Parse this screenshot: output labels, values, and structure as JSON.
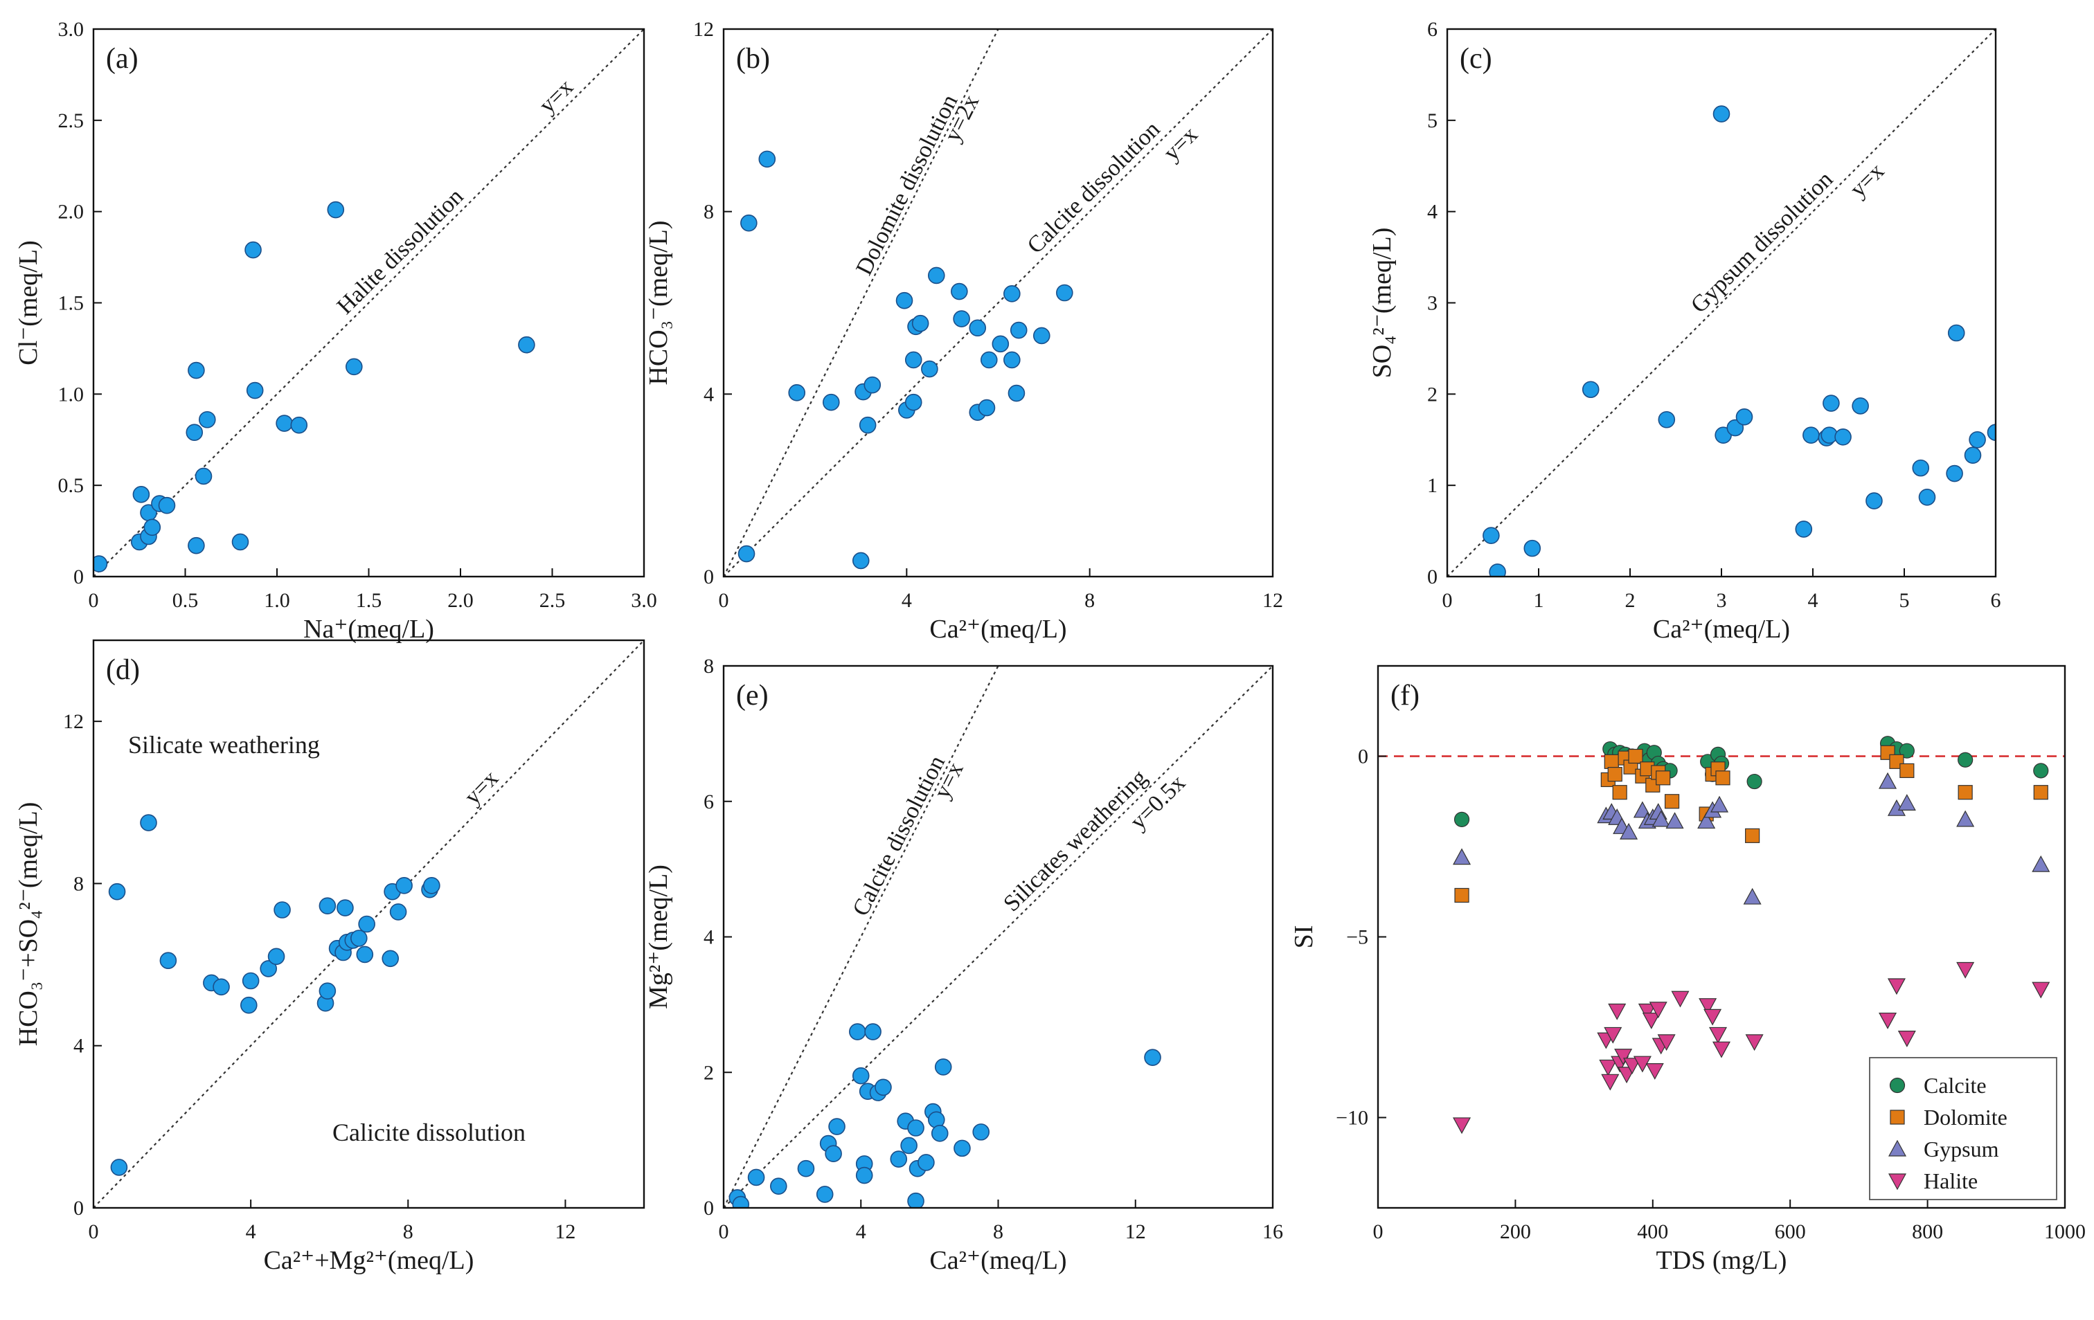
{
  "colors": {
    "point": "#1e9be6",
    "pointStroke": "#1a4f8a",
    "axis": "#111111",
    "ref": "#333333",
    "zero": "#d62728",
    "calcite": "#1e8c5a",
    "dolomite": "#e07a14",
    "gypsum": "#7b7fc4",
    "halite": "#d63d8a"
  },
  "chart_data": [
    {
      "id": "a",
      "type": "scatter",
      "panel_label": "(a)",
      "xlabel": "Na⁺(meq/L)",
      "ylabel": "Cl⁻(meq/L)",
      "xlim": [
        0,
        3.0
      ],
      "ylim": [
        0,
        3.0
      ],
      "xticks": [
        "0",
        "0.5",
        "1.0",
        "1.5",
        "2.0",
        "2.5",
        "3.0"
      ],
      "yticks": [
        "0",
        "0.5",
        "1.0",
        "1.5",
        "2.0",
        "2.5",
        "3.0"
      ],
      "xtick_values": [
        0,
        0.5,
        1.0,
        1.5,
        2.0,
        2.5,
        3.0
      ],
      "ytick_values": [
        0,
        0.5,
        1.0,
        1.5,
        2.0,
        2.5,
        3.0
      ],
      "ref_lines": [
        {
          "slope": 1,
          "label": "y=x",
          "desc": "Halite dissolution"
        }
      ],
      "points": [
        [
          0.03,
          0.07
        ],
        [
          0.25,
          0.19
        ],
        [
          0.26,
          0.45
        ],
        [
          0.3,
          0.35
        ],
        [
          0.3,
          0.22
        ],
        [
          0.32,
          0.27
        ],
        [
          0.36,
          0.4
        ],
        [
          0.4,
          0.39
        ],
        [
          0.55,
          0.79
        ],
        [
          0.56,
          1.13
        ],
        [
          0.56,
          0.17
        ],
        [
          0.6,
          0.55
        ],
        [
          0.62,
          0.86
        ],
        [
          0.8,
          0.19
        ],
        [
          0.87,
          1.79
        ],
        [
          0.88,
          1.02
        ],
        [
          1.04,
          0.84
        ],
        [
          1.12,
          0.83
        ],
        [
          1.32,
          2.01
        ],
        [
          1.42,
          1.15
        ],
        [
          2.36,
          1.27
        ]
      ]
    },
    {
      "id": "b",
      "type": "scatter",
      "panel_label": "(b)",
      "xlabel": "Ca²⁺(meq/L)",
      "ylabel": "HCO₃⁻(meq/L)",
      "xlim": [
        0,
        12
      ],
      "ylim": [
        0,
        12
      ],
      "xticks": [
        "0",
        "4",
        "8",
        "12"
      ],
      "yticks": [
        "0",
        "4",
        "8",
        "12"
      ],
      "xtick_values": [
        0,
        4,
        8,
        12
      ],
      "ytick_values": [
        0,
        4,
        8,
        12
      ],
      "ref_lines": [
        {
          "slope": 2,
          "label": "y=2x",
          "desc": "Dolomite dissolution"
        },
        {
          "slope": 1,
          "label": "y=x",
          "desc": "Calcite dissolution"
        }
      ],
      "points": [
        [
          0.5,
          0.5
        ],
        [
          0.55,
          7.75
        ],
        [
          0.95,
          9.15
        ],
        [
          1.6,
          4.03
        ],
        [
          2.35,
          3.82
        ],
        [
          3.0,
          0.35
        ],
        [
          3.05,
          4.05
        ],
        [
          3.15,
          3.32
        ],
        [
          3.25,
          4.2
        ],
        [
          3.95,
          6.05
        ],
        [
          4.0,
          3.65
        ],
        [
          4.15,
          3.82
        ],
        [
          4.15,
          4.75
        ],
        [
          4.2,
          5.48
        ],
        [
          4.3,
          5.55
        ],
        [
          4.5,
          4.55
        ],
        [
          4.65,
          6.6
        ],
        [
          5.15,
          6.25
        ],
        [
          5.2,
          5.65
        ],
        [
          5.55,
          5.45
        ],
        [
          5.55,
          3.6
        ],
        [
          5.75,
          3.7
        ],
        [
          5.8,
          4.75
        ],
        [
          6.05,
          5.1
        ],
        [
          6.3,
          6.2
        ],
        [
          6.3,
          4.75
        ],
        [
          6.4,
          4.02
        ],
        [
          6.45,
          5.4
        ],
        [
          6.95,
          5.28
        ],
        [
          7.45,
          6.22
        ]
      ]
    },
    {
      "id": "c",
      "type": "scatter",
      "panel_label": "(c)",
      "xlabel": "Ca²⁺(meq/L)",
      "ylabel": "SO₄²⁻(meq/L)",
      "xlim": [
        0,
        6
      ],
      "ylim": [
        0,
        6
      ],
      "xticks": [
        "0",
        "1",
        "2",
        "3",
        "4",
        "5",
        "6"
      ],
      "yticks": [
        "0",
        "1",
        "2",
        "3",
        "4",
        "5",
        "6"
      ],
      "xtick_values": [
        0,
        1,
        2,
        3,
        4,
        5,
        6
      ],
      "ytick_values": [
        0,
        1,
        2,
        3,
        4,
        5,
        6
      ],
      "ref_lines": [
        {
          "slope": 1,
          "label": "y=x",
          "desc": "Gypsum dissolution"
        }
      ],
      "points": [
        [
          0.48,
          0.45
        ],
        [
          0.55,
          0.05
        ],
        [
          0.93,
          0.31
        ],
        [
          1.57,
          2.05
        ],
        [
          2.4,
          1.72
        ],
        [
          3.0,
          5.07
        ],
        [
          3.02,
          1.55
        ],
        [
          3.15,
          1.63
        ],
        [
          3.25,
          1.75
        ],
        [
          3.9,
          0.52
        ],
        [
          3.98,
          1.55
        ],
        [
          4.15,
          1.52
        ],
        [
          4.18,
          1.55
        ],
        [
          4.2,
          1.9
        ],
        [
          4.33,
          1.53
        ],
        [
          4.52,
          1.87
        ],
        [
          4.67,
          0.83
        ],
        [
          5.18,
          1.19
        ],
        [
          5.25,
          0.87
        ],
        [
          5.55,
          1.13
        ],
        [
          5.57,
          2.67
        ],
        [
          5.75,
          1.33
        ],
        [
          5.8,
          1.5
        ],
        [
          6.0,
          1.58
        ]
      ]
    },
    {
      "id": "d",
      "type": "scatter",
      "panel_label": "(d)",
      "xlabel": "Ca²⁺+Mg²⁺(meq/L)",
      "ylabel": "HCO₃⁻+SO₄²⁻(meq/L)",
      "xlim": [
        0,
        14
      ],
      "ylim": [
        0,
        14
      ],
      "xticks": [
        "0",
        "4",
        "8",
        "12"
      ],
      "yticks": [
        "0",
        "4",
        "8",
        "12"
      ],
      "xtick_values": [
        0,
        4,
        8,
        12
      ],
      "ytick_values": [
        0,
        4,
        8,
        12
      ],
      "ref_lines": [
        {
          "slope": 1,
          "label": "y=x",
          "desc": ""
        }
      ],
      "annotations": [
        "Silicate weathering",
        "Calicite dissolution"
      ],
      "points": [
        [
          0.6,
          7.8
        ],
        [
          0.65,
          1.0
        ],
        [
          1.4,
          9.5
        ],
        [
          1.9,
          6.1
        ],
        [
          3.0,
          5.55
        ],
        [
          3.25,
          5.45
        ],
        [
          3.95,
          5.0
        ],
        [
          4.0,
          5.6
        ],
        [
          4.45,
          5.9
        ],
        [
          4.65,
          6.2
        ],
        [
          4.8,
          7.35
        ],
        [
          5.9,
          5.05
        ],
        [
          5.95,
          5.35
        ],
        [
          5.95,
          7.45
        ],
        [
          6.2,
          6.4
        ],
        [
          6.35,
          6.3
        ],
        [
          6.4,
          7.4
        ],
        [
          6.45,
          6.55
        ],
        [
          6.6,
          6.6
        ],
        [
          6.75,
          6.65
        ],
        [
          6.9,
          6.25
        ],
        [
          6.95,
          7.0
        ],
        [
          7.55,
          6.15
        ],
        [
          7.6,
          7.8
        ],
        [
          7.75,
          7.3
        ],
        [
          7.9,
          7.95
        ],
        [
          8.55,
          7.85
        ],
        [
          8.6,
          7.95
        ]
      ]
    },
    {
      "id": "e",
      "type": "scatter",
      "panel_label": "(e)",
      "xlabel": "Ca²⁺(meq/L)",
      "ylabel": "Mg²⁺(meq/L)",
      "xlim": [
        0,
        16
      ],
      "ylim": [
        0,
        8
      ],
      "xticks": [
        "0",
        "4",
        "8",
        "12",
        "16"
      ],
      "yticks": [
        "0",
        "2",
        "4",
        "6",
        "8"
      ],
      "xtick_values": [
        0,
        4,
        8,
        12,
        16
      ],
      "ytick_values": [
        0,
        2,
        4,
        6,
        8
      ],
      "ref_lines": [
        {
          "slope": 1,
          "label": "y=x",
          "desc": "Calcite dissolution"
        },
        {
          "slope": 0.5,
          "label": "y=0.5x",
          "desc": "Silicates weathering"
        }
      ],
      "points": [
        [
          0.4,
          0.15
        ],
        [
          0.5,
          0.05
        ],
        [
          0.95,
          0.45
        ],
        [
          1.6,
          0.32
        ],
        [
          2.4,
          0.58
        ],
        [
          2.95,
          0.2
        ],
        [
          3.05,
          0.95
        ],
        [
          3.2,
          0.8
        ],
        [
          3.3,
          1.2
        ],
        [
          3.9,
          2.6
        ],
        [
          4.0,
          1.95
        ],
        [
          4.1,
          0.65
        ],
        [
          4.1,
          0.48
        ],
        [
          4.2,
          1.72
        ],
        [
          4.35,
          2.6
        ],
        [
          4.5,
          1.7
        ],
        [
          4.65,
          1.78
        ],
        [
          5.1,
          0.72
        ],
        [
          5.3,
          1.28
        ],
        [
          5.4,
          0.92
        ],
        [
          5.6,
          1.18
        ],
        [
          5.6,
          0.1
        ],
        [
          5.65,
          0.58
        ],
        [
          5.9,
          0.67
        ],
        [
          6.1,
          1.42
        ],
        [
          6.2,
          1.3
        ],
        [
          6.3,
          1.1
        ],
        [
          6.4,
          2.08
        ],
        [
          6.95,
          0.88
        ],
        [
          7.5,
          1.12
        ],
        [
          12.5,
          2.22
        ]
      ]
    },
    {
      "id": "f",
      "type": "scatter",
      "panel_label": "(f)",
      "xlabel": "TDS (mg/L)",
      "ylabel": "SI",
      "xlim": [
        0,
        1000
      ],
      "ylim": [
        -12.5,
        2.5
      ],
      "xticks": [
        "0",
        "200",
        "400",
        "600",
        "800",
        "1000"
      ],
      "yticks": [
        "0",
        "−5",
        "−10"
      ],
      "xtick_values": [
        0,
        200,
        400,
        600,
        800,
        1000
      ],
      "ytick_values": [
        0,
        -5,
        -10
      ],
      "zero_line": 0,
      "series": [
        {
          "name": "Calcite",
          "marker": "circle",
          "values": [
            [
              122,
              -1.75
            ],
            [
              338,
              0.2
            ],
            [
              345,
              0.05
            ],
            [
              352,
              0.1
            ],
            [
              360,
              0.05
            ],
            [
              370,
              0.0
            ],
            [
              380,
              0.0
            ],
            [
              388,
              0.15
            ],
            [
              395,
              -0.1
            ],
            [
              402,
              0.1
            ],
            [
              408,
              -0.2
            ],
            [
              415,
              -0.35
            ],
            [
              425,
              -0.4
            ],
            [
              480,
              -0.15
            ],
            [
              487,
              -0.5
            ],
            [
              495,
              0.05
            ],
            [
              500,
              -0.2
            ],
            [
              548,
              -0.7
            ],
            [
              742,
              0.35
            ],
            [
              755,
              0.2
            ],
            [
              770,
              0.15
            ],
            [
              855,
              -0.1
            ],
            [
              965,
              -0.4
            ]
          ]
        },
        {
          "name": "Dolomite",
          "marker": "square",
          "values": [
            [
              122,
              -3.85
            ],
            [
              335,
              -0.65
            ],
            [
              340,
              -0.15
            ],
            [
              345,
              -0.5
            ],
            [
              352,
              -1.0
            ],
            [
              360,
              -0.05
            ],
            [
              368,
              -0.3
            ],
            [
              375,
              0.0
            ],
            [
              385,
              -0.55
            ],
            [
              392,
              -0.35
            ],
            [
              400,
              -0.8
            ],
            [
              408,
              -0.45
            ],
            [
              415,
              -0.6
            ],
            [
              428,
              -1.25
            ],
            [
              478,
              -1.6
            ],
            [
              487,
              -0.5
            ],
            [
              495,
              -0.35
            ],
            [
              502,
              -0.6
            ],
            [
              545,
              -2.2
            ],
            [
              742,
              0.1
            ],
            [
              755,
              -0.15
            ],
            [
              770,
              -0.4
            ],
            [
              855,
              -1.0
            ],
            [
              965,
              -1.0
            ]
          ]
        },
        {
          "name": "Gypsum",
          "marker": "triangle-up",
          "values": [
            [
              122,
              -2.8
            ],
            [
              332,
              -1.65
            ],
            [
              340,
              -1.55
            ],
            [
              348,
              -1.7
            ],
            [
              355,
              -1.95
            ],
            [
              365,
              -2.1
            ],
            [
              385,
              -1.5
            ],
            [
              392,
              -1.8
            ],
            [
              400,
              -1.7
            ],
            [
              408,
              -1.55
            ],
            [
              412,
              -1.75
            ],
            [
              432,
              -1.8
            ],
            [
              478,
              -1.8
            ],
            [
              487,
              -1.5
            ],
            [
              497,
              -1.35
            ],
            [
              545,
              -3.9
            ],
            [
              742,
              -0.7
            ],
            [
              755,
              -1.45
            ],
            [
              770,
              -1.3
            ],
            [
              855,
              -1.75
            ],
            [
              965,
              -3.0
            ]
          ]
        },
        {
          "name": "Halite",
          "marker": "triangle-down",
          "values": [
            [
              122,
              -10.2
            ],
            [
              332,
              -7.85
            ],
            [
              335,
              -8.6
            ],
            [
              338,
              -9.0
            ],
            [
              342,
              -7.7
            ],
            [
              348,
              -7.05
            ],
            [
              352,
              -8.5
            ],
            [
              357,
              -8.3
            ],
            [
              362,
              -8.8
            ],
            [
              370,
              -8.55
            ],
            [
              385,
              -8.5
            ],
            [
              392,
              -7.05
            ],
            [
              398,
              -7.3
            ],
            [
              403,
              -8.7
            ],
            [
              408,
              -7.0
            ],
            [
              412,
              -8.0
            ],
            [
              420,
              -7.9
            ],
            [
              440,
              -6.7
            ],
            [
              480,
              -6.9
            ],
            [
              487,
              -7.2
            ],
            [
              495,
              -7.7
            ],
            [
              500,
              -8.1
            ],
            [
              548,
              -7.9
            ],
            [
              742,
              -7.3
            ],
            [
              755,
              -6.35
            ],
            [
              770,
              -7.8
            ],
            [
              855,
              -5.9
            ],
            [
              965,
              -6.45
            ]
          ]
        }
      ],
      "legend": {
        "position": "bottom-right",
        "entries": [
          "Calcite",
          "Dolomite",
          "Gypsum",
          "Halite"
        ]
      }
    }
  ]
}
